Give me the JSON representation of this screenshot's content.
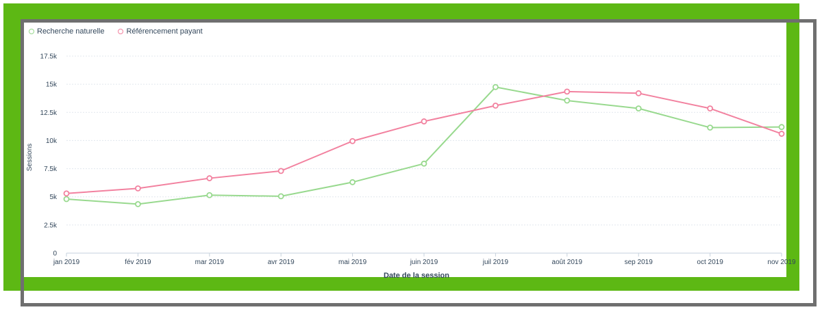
{
  "chart_data": {
    "type": "line",
    "xlabel": "Date de la session",
    "ylabel": "Sessions",
    "categories": [
      "jan 2019",
      "fév 2019",
      "mar 2019",
      "avr 2019",
      "mai 2019",
      "juin 2019",
      "juil 2019",
      "août 2019",
      "sep 2019",
      "oct 2019",
      "nov 2019"
    ],
    "yticks": [
      {
        "value": 0,
        "label": "0"
      },
      {
        "value": 2500,
        "label": "2.5k"
      },
      {
        "value": 5000,
        "label": "5k"
      },
      {
        "value": 7500,
        "label": "7.5k"
      },
      {
        "value": 10000,
        "label": "10k"
      },
      {
        "value": 12500,
        "label": "12.5k"
      },
      {
        "value": 15000,
        "label": "15k"
      },
      {
        "value": 17500,
        "label": "17.5k"
      }
    ],
    "ylim": [
      0,
      17500
    ],
    "grid": true,
    "legend_position": "top-left",
    "series": [
      {
        "name": "Recherche naturelle",
        "color": "#98d98e",
        "values": [
          4800,
          4350,
          5150,
          5050,
          6300,
          7950,
          14750,
          13550,
          12850,
          11150,
          11200
        ]
      },
      {
        "name": "Référencement payant",
        "color": "#f2819f",
        "values": [
          5300,
          5750,
          6650,
          7300,
          9950,
          11700,
          13100,
          14350,
          14200,
          12850,
          10600
        ]
      }
    ]
  }
}
